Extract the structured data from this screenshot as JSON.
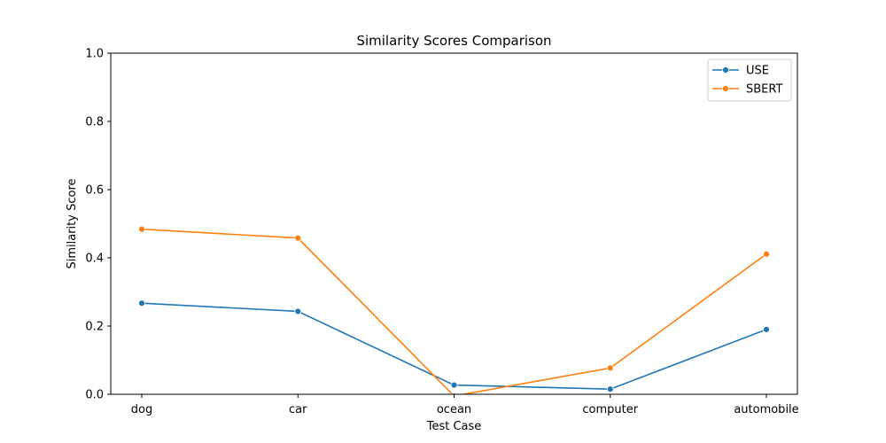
{
  "chart_data": {
    "type": "line",
    "title": "Similarity Scores Comparison",
    "xlabel": "Test Case",
    "ylabel": "Similarity Score",
    "categories": [
      "dog",
      "car",
      "ocean",
      "computer",
      "automobile"
    ],
    "ylim": [
      0,
      1.0
    ],
    "yticks": [
      "0.0",
      "0.2",
      "0.4",
      "0.6",
      "0.8",
      "1.0"
    ],
    "grid": false,
    "legend_position": "top-right",
    "series": [
      {
        "name": "USE",
        "color": "#1f77b4",
        "values": [
          0.267,
          0.243,
          0.027,
          0.015,
          0.19
        ]
      },
      {
        "name": "SBERT",
        "color": "#ff7f0e",
        "values": [
          0.484,
          0.458,
          -0.005,
          0.077,
          0.411
        ]
      }
    ]
  }
}
